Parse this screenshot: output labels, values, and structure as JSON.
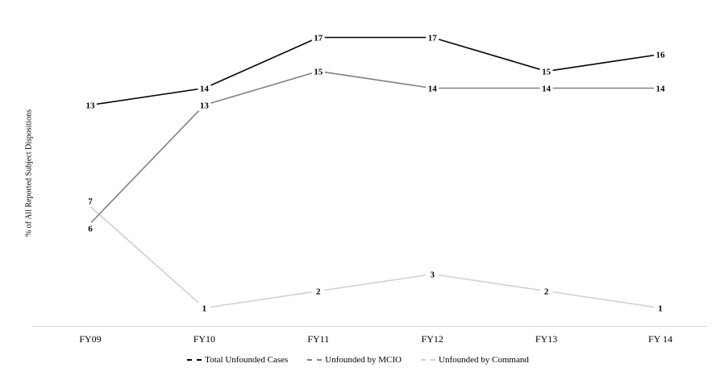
{
  "chart_data": {
    "type": "line",
    "title": "",
    "xlabel": "",
    "ylabel": "% of All Reported Subject Dispositions",
    "categories": [
      "FY09",
      "FY10",
      "FY11",
      "FY12",
      "FY13",
      "FY 14"
    ],
    "ylim": [
      0,
      18
    ],
    "grid": false,
    "legend_position": "bottom",
    "series": [
      {
        "name": "Total Unfounded Cases",
        "values": [
          13,
          14,
          17,
          17,
          15,
          16
        ],
        "color": "#000000"
      },
      {
        "name": "Unfounded by MCIO",
        "values": [
          6,
          13,
          15,
          14,
          14,
          14
        ],
        "color": "#808080"
      },
      {
        "name": "Unfounded by Command",
        "values": [
          7,
          1,
          2,
          3,
          2,
          1
        ],
        "color": "#d0d0d0"
      }
    ]
  }
}
